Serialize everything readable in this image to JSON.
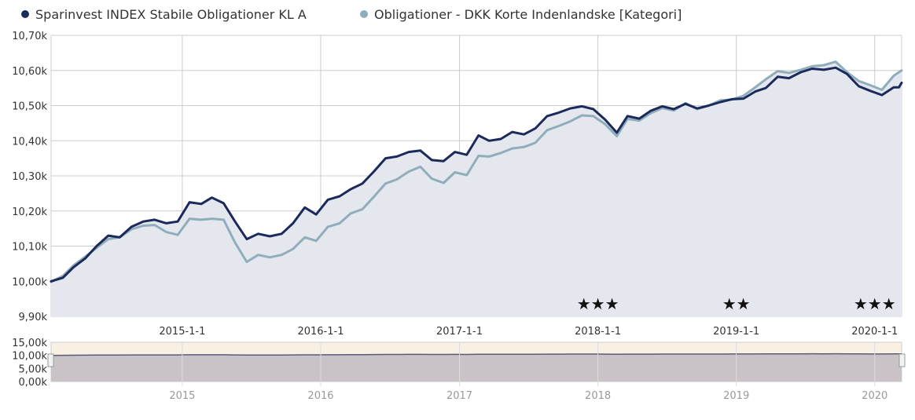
{
  "legend": {
    "items": [
      {
        "label": "Sparinvest INDEX Stabile Obligationer KL A",
        "color": "#1b2a5a"
      },
      {
        "label": "Obligationer - DKK Korte Indenlandske [Kategori]",
        "color": "#8fadbb"
      }
    ]
  },
  "colors": {
    "fund_line": "#1b2a5a",
    "category_line": "#8fadbb",
    "area_fill": "#e5e7ef",
    "grid": "#cccccc",
    "navigator_bg": "#f8f1e3",
    "navigator_fill": "#c9c2c7",
    "navigator_line": "#5d5a78",
    "axis_text": "#333333",
    "nav_axis_text": "#999999"
  },
  "chart_data": {
    "type": "line",
    "title": "",
    "x_axis": {
      "type": "date",
      "range": [
        "2014-01-20",
        "2020-03-12"
      ],
      "ticks": [
        "2015-01-01",
        "2016-01-01",
        "2017-01-01",
        "2018-01-01",
        "2019-01-01",
        "2020-01-01"
      ],
      "tick_labels": [
        "2015-1-1",
        "2016-1-1",
        "2017-1-1",
        "2018-1-1",
        "2019-1-1",
        "2020-1-1"
      ],
      "grid": true
    },
    "y_axis": {
      "range": [
        9900,
        10700
      ],
      "ticks": [
        9900,
        10000,
        10100,
        10200,
        10300,
        10400,
        10500,
        10600,
        10700
      ],
      "tick_labels": [
        "9,90k",
        "10,00k",
        "10,10k",
        "10,20k",
        "10,30k",
        "10,40k",
        "10,50k",
        "10,60k",
        "10,70k"
      ],
      "grid": true
    },
    "legend_position": "top-left",
    "series": [
      {
        "name": "Sparinvest INDEX Stabile Obligationer KL A",
        "points": [
          [
            "2014-01-20",
            10000
          ],
          [
            "2014-02-20",
            10010
          ],
          [
            "2014-03-20",
            10040
          ],
          [
            "2014-04-20",
            10065
          ],
          [
            "2014-05-20",
            10100
          ],
          [
            "2014-06-20",
            10130
          ],
          [
            "2014-07-20",
            10125
          ],
          [
            "2014-08-20",
            10155
          ],
          [
            "2014-09-20",
            10170
          ],
          [
            "2014-10-20",
            10175
          ],
          [
            "2014-11-20",
            10165
          ],
          [
            "2014-12-20",
            10170
          ],
          [
            "2015-01-20",
            10225
          ],
          [
            "2015-02-20",
            10220
          ],
          [
            "2015-03-20",
            10238
          ],
          [
            "2015-04-20",
            10222
          ],
          [
            "2015-05-20",
            10170
          ],
          [
            "2015-06-20",
            10120
          ],
          [
            "2015-07-20",
            10135
          ],
          [
            "2015-08-20",
            10128
          ],
          [
            "2015-09-20",
            10135
          ],
          [
            "2015-10-20",
            10165
          ],
          [
            "2015-11-20",
            10210
          ],
          [
            "2015-12-20",
            10190
          ],
          [
            "2016-01-20",
            10232
          ],
          [
            "2016-02-20",
            10242
          ],
          [
            "2016-03-20",
            10262
          ],
          [
            "2016-04-20",
            10278
          ],
          [
            "2016-05-20",
            10312
          ],
          [
            "2016-06-20",
            10350
          ],
          [
            "2016-07-20",
            10355
          ],
          [
            "2016-08-20",
            10368
          ],
          [
            "2016-09-20",
            10372
          ],
          [
            "2016-10-20",
            10345
          ],
          [
            "2016-11-20",
            10342
          ],
          [
            "2016-12-20",
            10368
          ],
          [
            "2017-01-20",
            10360
          ],
          [
            "2017-02-20",
            10415
          ],
          [
            "2017-03-20",
            10400
          ],
          [
            "2017-04-20",
            10405
          ],
          [
            "2017-05-20",
            10425
          ],
          [
            "2017-06-20",
            10418
          ],
          [
            "2017-07-20",
            10435
          ],
          [
            "2017-08-20",
            10470
          ],
          [
            "2017-09-20",
            10480
          ],
          [
            "2017-10-20",
            10492
          ],
          [
            "2017-11-20",
            10498
          ],
          [
            "2017-12-20",
            10490
          ],
          [
            "2018-01-20",
            10460
          ],
          [
            "2018-02-20",
            10423
          ],
          [
            "2018-03-20",
            10470
          ],
          [
            "2018-04-20",
            10463
          ],
          [
            "2018-05-20",
            10485
          ],
          [
            "2018-06-20",
            10498
          ],
          [
            "2018-07-20",
            10490
          ],
          [
            "2018-08-20",
            10505
          ],
          [
            "2018-09-20",
            10492
          ],
          [
            "2018-10-20",
            10500
          ],
          [
            "2018-11-20",
            10510
          ],
          [
            "2018-12-20",
            10518
          ],
          [
            "2019-01-20",
            10520
          ],
          [
            "2019-02-20",
            10540
          ],
          [
            "2019-03-20",
            10550
          ],
          [
            "2019-04-20",
            10582
          ],
          [
            "2019-05-20",
            10578
          ],
          [
            "2019-06-20",
            10595
          ],
          [
            "2019-07-20",
            10605
          ],
          [
            "2019-08-20",
            10602
          ],
          [
            "2019-09-20",
            10608
          ],
          [
            "2019-10-20",
            10590
          ],
          [
            "2019-11-20",
            10555
          ],
          [
            "2019-12-20",
            10542
          ],
          [
            "2020-01-20",
            10530
          ],
          [
            "2020-02-20",
            10552
          ],
          [
            "2020-03-05",
            10552
          ],
          [
            "2020-03-12",
            10565
          ]
        ]
      },
      {
        "name": "Obligationer - DKK Korte Indenlandske [Kategori]",
        "points": [
          [
            "2014-01-20",
            9998
          ],
          [
            "2014-02-20",
            10015
          ],
          [
            "2014-03-20",
            10045
          ],
          [
            "2014-04-20",
            10070
          ],
          [
            "2014-05-20",
            10095
          ],
          [
            "2014-06-20",
            10120
          ],
          [
            "2014-07-20",
            10125
          ],
          [
            "2014-08-20",
            10148
          ],
          [
            "2014-09-20",
            10158
          ],
          [
            "2014-10-20",
            10160
          ],
          [
            "2014-11-20",
            10140
          ],
          [
            "2014-12-20",
            10132
          ],
          [
            "2015-01-20",
            10178
          ],
          [
            "2015-02-20",
            10175
          ],
          [
            "2015-03-20",
            10178
          ],
          [
            "2015-04-20",
            10175
          ],
          [
            "2015-05-20",
            10110
          ],
          [
            "2015-06-20",
            10055
          ],
          [
            "2015-07-20",
            10075
          ],
          [
            "2015-08-20",
            10068
          ],
          [
            "2015-09-20",
            10075
          ],
          [
            "2015-10-20",
            10092
          ],
          [
            "2015-11-20",
            10125
          ],
          [
            "2015-12-20",
            10115
          ],
          [
            "2016-01-20",
            10155
          ],
          [
            "2016-02-20",
            10165
          ],
          [
            "2016-03-20",
            10193
          ],
          [
            "2016-04-20",
            10205
          ],
          [
            "2016-05-20",
            10240
          ],
          [
            "2016-06-20",
            10278
          ],
          [
            "2016-07-20",
            10290
          ],
          [
            "2016-08-20",
            10312
          ],
          [
            "2016-09-20",
            10326
          ],
          [
            "2016-10-20",
            10292
          ],
          [
            "2016-11-20",
            10280
          ],
          [
            "2016-12-20",
            10310
          ],
          [
            "2017-01-20",
            10302
          ],
          [
            "2017-02-20",
            10357
          ],
          [
            "2017-03-20",
            10355
          ],
          [
            "2017-04-20",
            10365
          ],
          [
            "2017-05-20",
            10378
          ],
          [
            "2017-06-20",
            10382
          ],
          [
            "2017-07-20",
            10394
          ],
          [
            "2017-08-20",
            10430
          ],
          [
            "2017-09-20",
            10442
          ],
          [
            "2017-10-20",
            10455
          ],
          [
            "2017-11-20",
            10472
          ],
          [
            "2017-12-20",
            10470
          ],
          [
            "2018-01-20",
            10447
          ],
          [
            "2018-02-20",
            10413
          ],
          [
            "2018-03-20",
            10462
          ],
          [
            "2018-04-20",
            10457
          ],
          [
            "2018-05-20",
            10478
          ],
          [
            "2018-06-20",
            10493
          ],
          [
            "2018-07-20",
            10486
          ],
          [
            "2018-08-20",
            10507
          ],
          [
            "2018-09-20",
            10490
          ],
          [
            "2018-10-20",
            10500
          ],
          [
            "2018-11-20",
            10515
          ],
          [
            "2018-12-20",
            10517
          ],
          [
            "2019-01-20",
            10528
          ],
          [
            "2019-02-20",
            10552
          ],
          [
            "2019-03-20",
            10575
          ],
          [
            "2019-04-20",
            10598
          ],
          [
            "2019-05-20",
            10593
          ],
          [
            "2019-06-20",
            10602
          ],
          [
            "2019-07-20",
            10612
          ],
          [
            "2019-08-20",
            10615
          ],
          [
            "2019-09-20",
            10625
          ],
          [
            "2019-10-20",
            10595
          ],
          [
            "2019-11-20",
            10570
          ],
          [
            "2019-12-20",
            10558
          ],
          [
            "2020-01-20",
            10545
          ],
          [
            "2020-02-20",
            10585
          ],
          [
            "2020-03-05",
            10595
          ],
          [
            "2020-03-12",
            10600
          ]
        ]
      }
    ],
    "annotations": [
      {
        "text": "★★★",
        "x": "2018-01-01"
      },
      {
        "text": "★★",
        "x": "2019-01-01"
      },
      {
        "text": "★★★",
        "x": "2020-01-01"
      }
    ],
    "navigator": {
      "y_range": [
        0,
        15000
      ],
      "y_ticks": [
        0,
        5000,
        10000,
        15000
      ],
      "y_tick_labels": [
        "0,00k",
        "5,00k",
        "10,00k",
        "15,00k"
      ],
      "x_ticks": [
        "2015-01-01",
        "2016-01-01",
        "2017-01-01",
        "2018-01-01",
        "2019-01-01",
        "2020-01-01"
      ],
      "x_tick_labels": [
        "2015",
        "2016",
        "2017",
        "2018",
        "2019",
        "2020"
      ]
    }
  }
}
